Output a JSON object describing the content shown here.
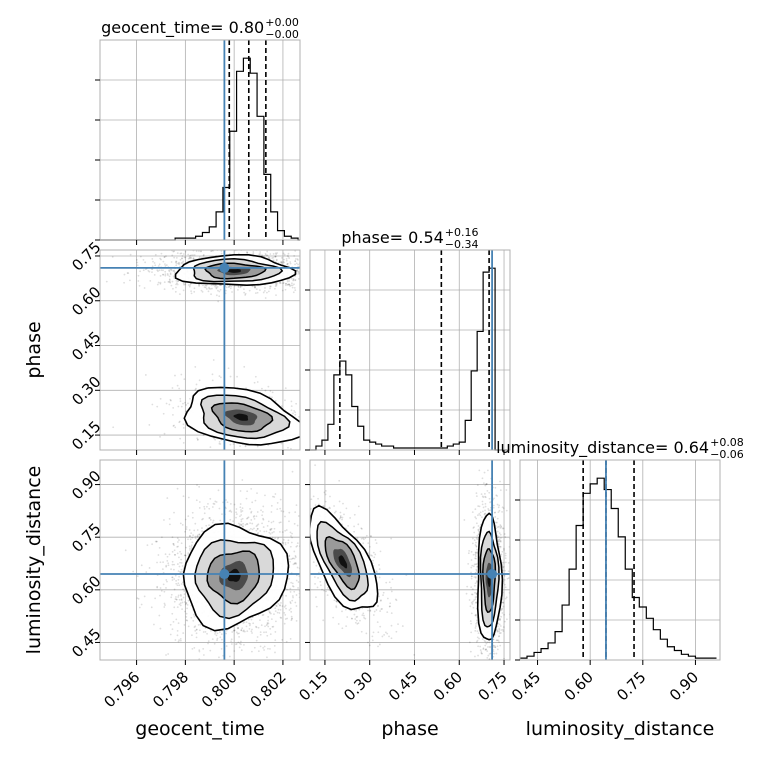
{
  "chart_data": {
    "type": "corner",
    "parameters": [
      "geocent_time",
      "phase",
      "luminosity_distance"
    ],
    "truths": {
      "geocent_time": 0.7996,
      "phase": 0.71,
      "luminosity_distance": 0.645
    },
    "truth_color": "#4682b4",
    "panel_titles": [
      {
        "name": "geocent_time",
        "value": "0.80",
        "plus": "+0.00",
        "minus": "−0.00"
      },
      {
        "name": "phase",
        "value": "0.54",
        "plus": "+0.16",
        "minus": "−0.34"
      },
      {
        "name": "luminosity_distance",
        "value": "0.64",
        "plus": "+0.08",
        "minus": "−0.06"
      }
    ],
    "axes": {
      "geocent_time": {
        "range": [
          0.7945,
          0.8027
        ],
        "ticks": [
          "0.796",
          "0.798",
          "0.800",
          "0.802"
        ],
        "tick_values": [
          0.796,
          0.798,
          0.8,
          0.802
        ]
      },
      "phase": {
        "range": [
          0.1,
          0.77
        ],
        "ticks": [
          "0.15",
          "0.30",
          "0.45",
          "0.60",
          "0.75"
        ],
        "tick_values": [
          0.15,
          0.3,
          0.45,
          0.6,
          0.75
        ]
      },
      "luminosity_distance": {
        "range": [
          0.4,
          0.97
        ],
        "ticks": [
          "0.45",
          "0.60",
          "0.75",
          "0.90"
        ],
        "tick_values": [
          0.45,
          0.6,
          0.75,
          0.9
        ]
      }
    },
    "histograms": {
      "geocent_time": {
        "quantiles": [
          0.7998,
          0.8006,
          0.8013
        ],
        "bin_edges": [
          0.7945,
          0.79478,
          0.79506,
          0.79534,
          0.79562,
          0.7959,
          0.79618,
          0.79646,
          0.79674,
          0.79702,
          0.7973,
          0.79758,
          0.79786,
          0.79814,
          0.79842,
          0.7987,
          0.79898,
          0.79926,
          0.79954,
          0.79982,
          0.8001,
          0.80038,
          0.80066,
          0.80094,
          0.80122,
          0.8015,
          0.80178,
          0.80206,
          0.80234,
          0.80262,
          0.8027
        ],
        "counts": [
          0,
          0,
          0,
          0,
          0,
          0,
          0,
          0,
          0,
          0,
          0,
          1,
          1,
          1,
          2,
          4,
          7,
          15,
          28,
          58,
          90,
          97,
          89,
          66,
          35,
          15,
          5,
          2,
          1,
          0
        ]
      },
      "phase": {
        "quantiles": [
          0.2,
          0.54,
          0.7
        ],
        "bin_edges": [
          0.1,
          0.12,
          0.14,
          0.16,
          0.18,
          0.2,
          0.22,
          0.24,
          0.26,
          0.28,
          0.3,
          0.32,
          0.34,
          0.36,
          0.38,
          0.4,
          0.42,
          0.44,
          0.46,
          0.48,
          0.5,
          0.52,
          0.54,
          0.56,
          0.58,
          0.6,
          0.62,
          0.64,
          0.66,
          0.68,
          0.7,
          0.72,
          0.74,
          0.76
        ],
        "counts": [
          0,
          2,
          5,
          13,
          38,
          45,
          38,
          22,
          12,
          5,
          4,
          3,
          2,
          2,
          1,
          1,
          1,
          1,
          1,
          1,
          1,
          1,
          1,
          2,
          3,
          4,
          15,
          40,
          60,
          90,
          92,
          0,
          0
        ]
      },
      "luminosity_distance": {
        "quantiles": [
          0.58,
          0.645,
          0.725
        ],
        "bin_edges": [
          0.4,
          0.42,
          0.44,
          0.46,
          0.48,
          0.5,
          0.52,
          0.54,
          0.56,
          0.58,
          0.6,
          0.62,
          0.64,
          0.66,
          0.68,
          0.7,
          0.72,
          0.74,
          0.76,
          0.78,
          0.8,
          0.82,
          0.84,
          0.86,
          0.88,
          0.9,
          0.92,
          0.94,
          0.96
        ],
        "counts": [
          1,
          2,
          4,
          6,
          9,
          15,
          29,
          48,
          71,
          88,
          93,
          96,
          90,
          80,
          65,
          48,
          33,
          28,
          22,
          16,
          11,
          7,
          5,
          3,
          2,
          1,
          1,
          1
        ]
      }
    },
    "density_panels": [
      {
        "x": "geocent_time",
        "y": "phase",
        "clusters": [
          {
            "cx": 0.8,
            "cy": 0.7,
            "sx": 0.0012,
            "sy": 0.025,
            "n": 1800,
            "rot": 0
          },
          {
            "cx": 0.8003,
            "cy": 0.21,
            "sx": 0.0012,
            "sy": 0.045,
            "n": 600,
            "rot": 0.2
          }
        ]
      },
      {
        "x": "geocent_time",
        "y": "luminosity_distance",
        "clusters": [
          {
            "cx": 0.8,
            "cy": 0.64,
            "sx": 0.0011,
            "sy": 0.07,
            "n": 2400,
            "rot": -0.6
          }
        ]
      },
      {
        "x": "phase",
        "y": "luminosity_distance",
        "clusters": [
          {
            "cx": 0.21,
            "cy": 0.68,
            "sx": 0.04,
            "sy": 0.08,
            "n": 900,
            "rot": -0.5
          },
          {
            "cx": 0.7,
            "cy": 0.63,
            "sx": 0.02,
            "sy": 0.09,
            "n": 1500,
            "rot": 0
          }
        ]
      }
    ]
  }
}
